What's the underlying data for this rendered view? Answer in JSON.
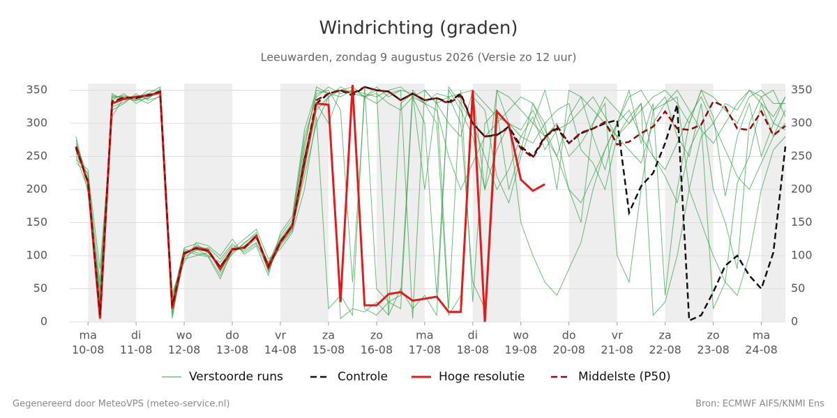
{
  "chart_data": {
    "type": "line",
    "title": "Windrichting (graden)",
    "subtitle": "Leeuwarden, zondag  9 augustus 2026 (Versie zo 12 uur)",
    "footer_left": "Gegenereerd door MeteoVPS (meteo-service.nl)",
    "footer_right": "Bron: ECMWF AIFS/KNMI Ens",
    "x": [
      -0.25,
      0,
      0.25,
      0.5,
      0.75,
      1,
      1.25,
      1.5,
      1.75,
      2,
      2.25,
      2.5,
      2.75,
      3,
      3.25,
      3.5,
      3.75,
      4,
      4.25,
      4.5,
      4.75,
      5,
      5.25,
      5.5,
      5.75,
      6,
      6.25,
      6.5,
      6.75,
      7,
      7.25,
      7.5,
      7.75,
      8,
      8.25,
      8.5,
      8.75,
      9,
      9.25,
      9.5,
      9.75,
      10,
      10.25,
      10.5,
      10.75,
      11,
      11.25,
      11.5,
      11.75,
      12,
      12.25,
      12.5,
      12.75,
      13,
      13.25,
      13.5,
      13.75,
      14,
      14.25,
      14.5
    ],
    "xlim": [
      -0.38,
      14.5
    ],
    "xticks": [
      {
        "value": 0,
        "label": "10-08",
        "day": "ma"
      },
      {
        "value": 1,
        "label": "11-08",
        "day": "di"
      },
      {
        "value": 2,
        "label": "12-08",
        "day": "wo"
      },
      {
        "value": 3,
        "label": "13-08",
        "day": "do"
      },
      {
        "value": 4,
        "label": "14-08",
        "day": "vr"
      },
      {
        "value": 5,
        "label": "15-08",
        "day": "za"
      },
      {
        "value": 6,
        "label": "16-08",
        "day": "zo"
      },
      {
        "value": 7,
        "label": "17-08",
        "day": "ma"
      },
      {
        "value": 8,
        "label": "18-08",
        "day": "di"
      },
      {
        "value": 9,
        "label": "19-08",
        "day": "wo"
      },
      {
        "value": 10,
        "label": "20-08",
        "day": "do"
      },
      {
        "value": 11,
        "label": "21-08",
        "day": "vr"
      },
      {
        "value": 12,
        "label": "22-08",
        "day": "za"
      },
      {
        "value": 13,
        "label": "23-08",
        "day": "zo"
      },
      {
        "value": 14,
        "label": "24-08",
        "day": "ma"
      }
    ],
    "ylim": [
      0,
      360
    ],
    "yticks": [
      0,
      50,
      100,
      150,
      200,
      250,
      300,
      350
    ],
    "grid": true,
    "series": [
      {
        "name": "Verstoorde runs",
        "color": "#2e9e3e",
        "members": [
          [
            250,
            200,
            40,
            340,
            340,
            335,
            338,
            350,
            30,
            110,
            105,
            100,
            90,
            115,
            110,
            125,
            90,
            125,
            150,
            270,
            345,
            350,
            320,
            60,
            340,
            350,
            10,
            330,
            345,
            200,
            340,
            20,
            350,
            30,
            300,
            320,
            200,
            260,
            330,
            290,
            250,
            310,
            340,
            280,
            230,
            300,
            350,
            270,
            330,
            40,
            200,
            300,
            350,
            310,
            190,
            280,
            330,
            250,
            300,
            340
          ],
          [
            270,
            220,
            30,
            335,
            345,
            330,
            340,
            345,
            15,
            100,
            115,
            110,
            75,
            108,
            115,
            128,
            85,
            118,
            140,
            230,
            320,
            340,
            355,
            345,
            20,
            10,
            30,
            40,
            350,
            330,
            300,
            10,
            40,
            340,
            320,
            220,
            180,
            250,
            300,
            350,
            280,
            200,
            150,
            300,
            330,
            100,
            60,
            200,
            320,
            340,
            280,
            250,
            330,
            200,
            150,
            80,
            300,
            340,
            350,
            310
          ],
          [
            255,
            215,
            60,
            320,
            330,
            345,
            335,
            340,
            40,
            95,
            100,
            105,
            85,
            112,
            108,
            120,
            78,
            122,
            148,
            250,
            330,
            300,
            350,
            345,
            340,
            355,
            340,
            350,
            5,
            350,
            330,
            340,
            345,
            350,
            200,
            350,
            300,
            280,
            270,
            300,
            320,
            330,
            260,
            240,
            200,
            280,
            310,
            330,
            250,
            220,
            180,
            260,
            300,
            20,
            60,
            210,
            250,
            330,
            280,
            320
          ],
          [
            280,
            205,
            10,
            345,
            335,
            340,
            345,
            355,
            25,
            105,
            110,
            100,
            70,
            105,
            118,
            135,
            80,
            115,
            138,
            260,
            355,
            345,
            5,
            20,
            15,
            30,
            10,
            50,
            20,
            40,
            10,
            355,
            330,
            300,
            250,
            200,
            230,
            280,
            310,
            260,
            290,
            300,
            320,
            340,
            310,
            280,
            260,
            240,
            300,
            330,
            350,
            320,
            290,
            270,
            300,
            330,
            350,
            340,
            300,
            290
          ],
          [
            240,
            225,
            80,
            310,
            340,
            338,
            330,
            342,
            10,
            98,
            108,
            112,
            95,
            118,
            105,
            118,
            88,
            130,
            155,
            280,
            340,
            355,
            345,
            350,
            340,
            330,
            345,
            350,
            345,
            330,
            345,
            340,
            300,
            60,
            20,
            350,
            340,
            320,
            300,
            280,
            250,
            200,
            180,
            220,
            260,
            300,
            320,
            280,
            250,
            230,
            270,
            310,
            340,
            300,
            260,
            220,
            200,
            240,
            280,
            300
          ],
          [
            260,
            210,
            20,
            338,
            342,
            336,
            350,
            348,
            35,
            112,
            118,
            104,
            82,
            102,
            120,
            132,
            75,
            125,
            142,
            220,
            300,
            340,
            350,
            355,
            340,
            345,
            330,
            320,
            340,
            350,
            330,
            300,
            280,
            350,
            330,
            310,
            300,
            290,
            320,
            280,
            300,
            250,
            270,
            300,
            340,
            320,
            300,
            330,
            10,
            30,
            100,
            200,
            280,
            300,
            330,
            320,
            350,
            330,
            310,
            340
          ],
          [
            275,
            195,
            50,
            325,
            332,
            342,
            337,
            352,
            5,
            108,
            102,
            98,
            65,
            110,
            125,
            140,
            95,
            110,
            135,
            200,
            310,
            20,
            40,
            10,
            355,
            50,
            30,
            20,
            340,
            300,
            40,
            350,
            320,
            280,
            200,
            260,
            300,
            150,
            100,
            60,
            40,
            80,
            120,
            200,
            260,
            300,
            340,
            350,
            320,
            330,
            340,
            200,
            150,
            100,
            60,
            40,
            100,
            200,
            260,
            280
          ],
          [
            245,
            230,
            15,
            342,
            338,
            334,
            344,
            346,
            45,
            90,
            120,
            115,
            100,
            125,
            102,
            115,
            70,
            135,
            160,
            290,
            350,
            345,
            340,
            350,
            345,
            340,
            350,
            355,
            340,
            330,
            320,
            250,
            200,
            240,
            280,
            300,
            320,
            340,
            330,
            300,
            200,
            350,
            340,
            320,
            300,
            280,
            300,
            320,
            340,
            350,
            330,
            300,
            350,
            340,
            320,
            300,
            340,
            350,
            330,
            330
          ]
        ]
      },
      {
        "name": "Controle",
        "color": "#111111",
        "dashed": true,
        "values": [
          262,
          212,
          8,
          332,
          338,
          338,
          343,
          347,
          22,
          104,
          111,
          107,
          82,
          109,
          112,
          129,
          84,
          121,
          146,
          245,
          330,
          345,
          350,
          342,
          355,
          350,
          348,
          335,
          345,
          335,
          338,
          332,
          345,
          300,
          280,
          282,
          295,
          265,
          250,
          280,
          292,
          270,
          285,
          292,
          300,
          305,
          165,
          205,
          225,
          270,
          328,
          2,
          10,
          45,
          85,
          100,
          70,
          50,
          105,
          265
        ]
      },
      {
        "name": "Hoge resolutie",
        "color": "#e31a1c",
        "width": 3,
        "values": [
          265,
          210,
          5,
          330,
          337,
          340,
          342,
          347,
          20,
          103,
          112,
          108,
          80,
          110,
          112,
          130,
          82,
          120,
          145,
          240,
          330,
          328,
          30,
          358,
          25,
          25,
          42,
          45,
          32,
          35,
          38,
          15,
          15,
          350,
          0,
          318,
          298,
          215,
          198,
          208,
          null,
          null,
          null,
          null,
          null,
          null,
          null,
          null,
          null,
          null,
          null,
          null,
          null,
          null,
          null,
          null,
          null,
          null,
          null,
          null
        ]
      },
      {
        "name": "Middelste (P50)",
        "color": "#8b0a0a",
        "dashed": true,
        "values": [
          264,
          211,
          10,
          333,
          339,
          339,
          342,
          348,
          24,
          104,
          111,
          107,
          83,
          109,
          112,
          129,
          84,
          121,
          146,
          243,
          335,
          345,
          350,
          345,
          355,
          350,
          348,
          335,
          345,
          335,
          338,
          330,
          342,
          300,
          280,
          283,
          293,
          262,
          248,
          278,
          296,
          270,
          286,
          292,
          302,
          268,
          272,
          285,
          295,
          318,
          292,
          290,
          298,
          333,
          325,
          292,
          290,
          318,
          282,
          296
        ]
      }
    ]
  }
}
